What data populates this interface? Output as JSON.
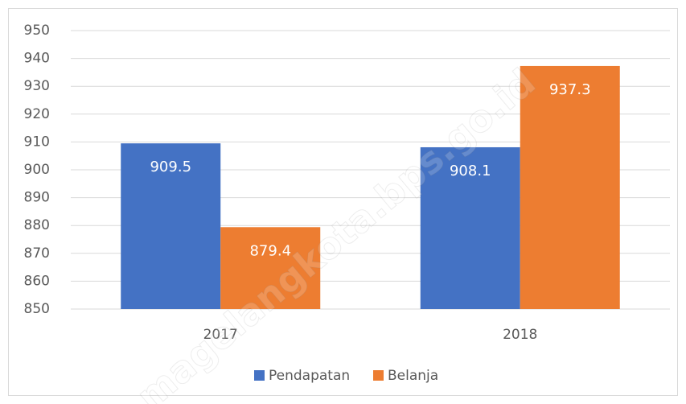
{
  "chart_data": {
    "type": "bar",
    "categories": [
      "2017",
      "2018"
    ],
    "series": [
      {
        "name": "Pendapatan",
        "color": "#4472c4",
        "values": [
          909.5,
          908.1
        ]
      },
      {
        "name": "Belanja",
        "color": "#ed7d31",
        "values": [
          879.4,
          937.3
        ]
      }
    ],
    "ylim": [
      850,
      950
    ],
    "yticks": [
      850,
      860,
      870,
      880,
      890,
      900,
      910,
      920,
      930,
      940,
      950
    ],
    "grid": true,
    "legend": "bottom",
    "watermark": "magelangkota.bps.go.id"
  }
}
